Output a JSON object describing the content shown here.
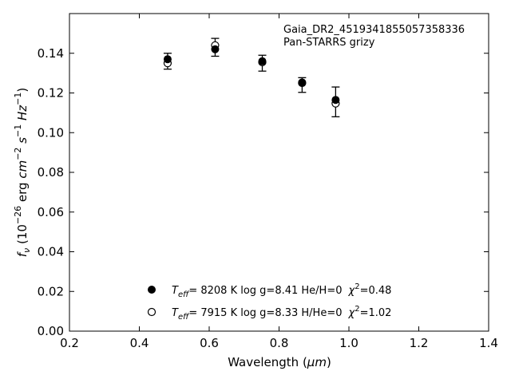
{
  "chart_data": {
    "type": "scatter",
    "xlabel_main": "Wavelength (",
    "xlabel_unit": "μm",
    "xlabel_close": ")",
    "ylabel_parts": [
      "f",
      "ν",
      " (10",
      "−26",
      " erg ",
      "cm",
      "−2",
      " s",
      "−1",
      " Hz",
      "−1",
      ")"
    ],
    "xlim": [
      0.2,
      1.4
    ],
    "ylim": [
      0.0,
      0.16
    ],
    "xticks": [
      0.2,
      0.4,
      0.6,
      0.8,
      1.0,
      1.2,
      1.4
    ],
    "xtick_labels": [
      "0.2",
      "0.4",
      "0.6",
      "0.8",
      "1.0",
      "1.2",
      "1.4"
    ],
    "yticks": [
      0.0,
      0.02,
      0.04,
      0.06,
      0.08,
      0.1,
      0.12,
      0.14
    ],
    "ytick_labels": [
      "0.00",
      "0.02",
      "0.04",
      "0.06",
      "0.08",
      "0.10",
      "0.12",
      "0.14"
    ],
    "grid": false,
    "annotation": {
      "line1": "Gaia_DR2_4519341855057358336",
      "line2": "Pan-STARRS grizy"
    },
    "observed": {
      "x": [
        0.481,
        0.617,
        0.752,
        0.866,
        0.962
      ],
      "y": [
        0.136,
        0.143,
        0.135,
        0.124,
        0.1155
      ],
      "err": [
        0.004,
        0.0045,
        0.004,
        0.0037,
        0.0075
      ]
    },
    "series": [
      {
        "marker": "filled",
        "values": [
          0.137,
          0.142,
          0.136,
          0.1253,
          0.1165
        ],
        "legend": {
          "teff_sym": "T",
          "teff_sub": "eff",
          "text": "=  8208 K  log g=8.41  He/H=0",
          "chi_sym": "χ",
          "chi_sup": "2",
          "chi_val": "=0.48"
        }
      },
      {
        "marker": "open",
        "values": [
          0.135,
          0.144,
          0.1355,
          0.125,
          0.1147
        ],
        "legend": {
          "teff_sym": "T",
          "teff_sub": "eff",
          "text": "=  7915 K  log g=8.33  H/He=0",
          "chi_sym": "χ",
          "chi_sup": "2",
          "chi_val": "=1.02"
        }
      }
    ]
  }
}
